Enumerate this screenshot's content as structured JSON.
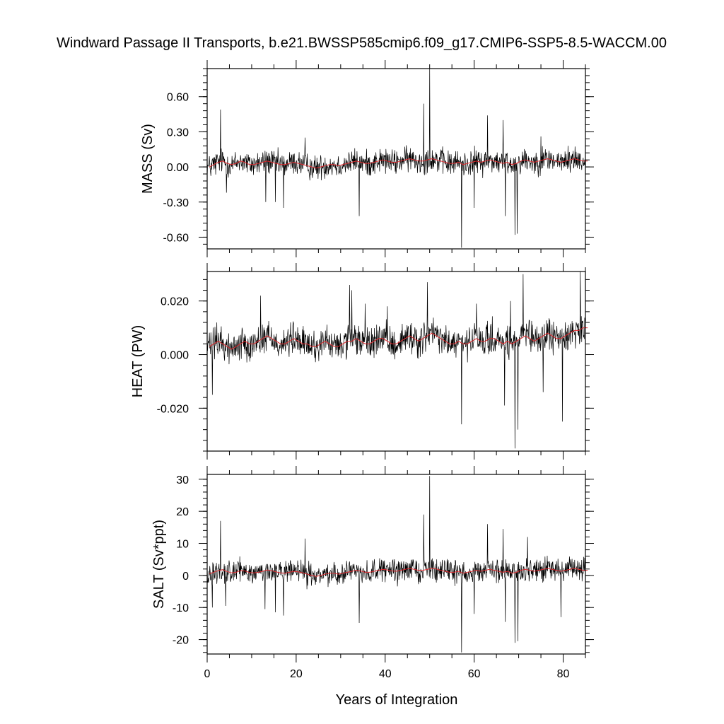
{
  "chart_data": [
    {
      "type": "line",
      "title": "Windward Passage II Transports, b.e21.BWSSP585cmip6.f09_g17.CMIP6-SSP5-8.5-WACCM.00",
      "ylabel": "MASS (Sv)",
      "xlabel": "",
      "xlim": [
        0,
        85
      ],
      "ylim": [
        -0.7,
        0.84
      ],
      "y_ticks": [
        -0.6,
        -0.3,
        0.0,
        0.3,
        0.6
      ],
      "y_tick_labels": [
        "-0.60",
        "-0.30",
        "0.00",
        "0.30",
        "0.60"
      ],
      "grid": false,
      "baseline": [
        0.0,
        0.02,
        0.04,
        0.05,
        0.03,
        0.02,
        0.03,
        0.05,
        0.04,
        0.02,
        0.02,
        0.03,
        0.04,
        0.05,
        0.04,
        0.03,
        0.02,
        0.02,
        0.03,
        0.04,
        0.03,
        0.02,
        0.01,
        0.0,
        -0.01,
        0.0,
        0.01,
        0.02,
        0.02,
        0.01,
        0.02,
        0.03,
        0.04,
        0.05,
        0.04,
        0.03,
        0.03,
        0.04,
        0.05,
        0.06,
        0.05,
        0.04,
        0.04,
        0.05,
        0.06,
        0.07,
        0.06,
        0.05,
        0.05,
        0.06,
        0.07,
        0.06,
        0.05,
        0.04,
        0.03,
        0.03,
        0.04,
        0.02,
        0.03,
        0.04,
        0.05,
        0.04,
        0.05,
        0.06,
        0.05,
        0.04,
        0.03,
        0.04,
        0.02,
        0.03,
        0.05,
        0.06,
        0.05,
        0.04,
        0.05,
        0.06,
        0.07,
        0.06,
        0.05,
        0.04,
        0.05,
        0.06,
        0.07,
        0.06,
        0.05,
        0.05
      ],
      "noise_amplitude": 0.08,
      "spikes": [
        {
          "x": 3.0,
          "y": 0.49
        },
        {
          "x": 4.3,
          "y": -0.22
        },
        {
          "x": 13.2,
          "y": -0.3
        },
        {
          "x": 15.3,
          "y": -0.3
        },
        {
          "x": 17.2,
          "y": -0.35
        },
        {
          "x": 22.0,
          "y": 0.25
        },
        {
          "x": 34.2,
          "y": -0.42
        },
        {
          "x": 48.7,
          "y": 0.54
        },
        {
          "x": 50.0,
          "y": 0.84
        },
        {
          "x": 57.2,
          "y": -0.69
        },
        {
          "x": 60.0,
          "y": -0.35
        },
        {
          "x": 63.0,
          "y": 0.44
        },
        {
          "x": 66.5,
          "y": 0.4
        },
        {
          "x": 67.0,
          "y": -0.42
        },
        {
          "x": 69.2,
          "y": -0.58
        },
        {
          "x": 69.7,
          "y": -0.57
        },
        {
          "x": 75.0,
          "y": 0.26
        }
      ]
    },
    {
      "type": "line",
      "ylabel": "HEAT (PW)",
      "xlabel": "",
      "xlim": [
        0,
        85
      ],
      "ylim": [
        -0.036,
        0.031
      ],
      "y_ticks": [
        -0.02,
        0.0,
        0.02
      ],
      "y_tick_labels": [
        "-0.020",
        "0.000",
        "0.020"
      ],
      "grid": false,
      "baseline": [
        0.003,
        0.004,
        0.005,
        0.004,
        0.003,
        0.002,
        0.003,
        0.004,
        0.005,
        0.004,
        0.004,
        0.005,
        0.006,
        0.007,
        0.006,
        0.005,
        0.004,
        0.004,
        0.005,
        0.006,
        0.005,
        0.004,
        0.004,
        0.003,
        0.003,
        0.004,
        0.005,
        0.004,
        0.003,
        0.003,
        0.004,
        0.005,
        0.005,
        0.006,
        0.005,
        0.004,
        0.004,
        0.005,
        0.006,
        0.006,
        0.005,
        0.004,
        0.004,
        0.005,
        0.006,
        0.007,
        0.006,
        0.005,
        0.006,
        0.007,
        0.008,
        0.007,
        0.006,
        0.005,
        0.004,
        0.004,
        0.005,
        0.004,
        0.004,
        0.005,
        0.006,
        0.005,
        0.005,
        0.006,
        0.006,
        0.005,
        0.004,
        0.005,
        0.004,
        0.005,
        0.006,
        0.007,
        0.006,
        0.005,
        0.006,
        0.007,
        0.008,
        0.007,
        0.006,
        0.006,
        0.007,
        0.008,
        0.009,
        0.009,
        0.01,
        0.01
      ],
      "noise_amplitude": 0.0045,
      "spikes": [
        {
          "x": 1.2,
          "y": -0.015
        },
        {
          "x": 12.0,
          "y": 0.022
        },
        {
          "x": 32.5,
          "y": 0.024
        },
        {
          "x": 32.0,
          "y": 0.026
        },
        {
          "x": 35.5,
          "y": 0.019
        },
        {
          "x": 40.5,
          "y": 0.018
        },
        {
          "x": 49.5,
          "y": 0.027
        },
        {
          "x": 57.2,
          "y": -0.026
        },
        {
          "x": 60.5,
          "y": 0.019
        },
        {
          "x": 66.8,
          "y": -0.019
        },
        {
          "x": 68.2,
          "y": 0.02
        },
        {
          "x": 69.2,
          "y": -0.035
        },
        {
          "x": 69.8,
          "y": -0.028
        },
        {
          "x": 71.0,
          "y": 0.03
        },
        {
          "x": 75.5,
          "y": -0.014
        },
        {
          "x": 79.8,
          "y": -0.025
        },
        {
          "x": 83.8,
          "y": 0.031
        }
      ]
    },
    {
      "type": "line",
      "ylabel": "SALT (Sv*ppt)",
      "xlabel": "Years of Integration",
      "xlim": [
        0,
        85
      ],
      "ylim": [
        -24.5,
        31.5
      ],
      "x_ticks": [
        0,
        20,
        40,
        60,
        80
      ],
      "x_tick_labels": [
        "0",
        "20",
        "40",
        "60",
        "80"
      ],
      "y_ticks": [
        -20,
        -10,
        0,
        10,
        20,
        30
      ],
      "y_tick_labels": [
        "-20",
        "-10",
        "0",
        "10",
        "20",
        "30"
      ],
      "grid": false,
      "baseline": [
        0.5,
        1.0,
        1.5,
        1.8,
        1.2,
        0.8,
        1.0,
        1.5,
        1.4,
        0.9,
        0.8,
        1.0,
        1.3,
        1.7,
        1.5,
        1.1,
        0.8,
        0.7,
        1.0,
        1.3,
        1.1,
        0.8,
        0.4,
        0.0,
        -0.3,
        0.0,
        0.4,
        0.7,
        0.7,
        0.4,
        0.7,
        1.0,
        1.3,
        1.6,
        1.4,
        1.0,
        1.0,
        1.3,
        1.6,
        1.9,
        1.7,
        1.4,
        1.3,
        1.6,
        1.9,
        2.2,
        1.9,
        1.6,
        1.6,
        1.9,
        2.2,
        2.0,
        1.6,
        1.3,
        1.0,
        1.0,
        1.3,
        0.7,
        1.0,
        1.3,
        1.6,
        1.3,
        1.6,
        1.9,
        1.6,
        1.3,
        1.0,
        1.3,
        0.7,
        1.0,
        1.6,
        1.9,
        1.6,
        1.3,
        1.6,
        1.9,
        2.2,
        1.9,
        1.6,
        1.3,
        1.6,
        1.9,
        2.2,
        1.9,
        1.6,
        1.6
      ],
      "noise_amplitude": 2.6,
      "spikes": [
        {
          "x": 1.2,
          "y": -10.0
        },
        {
          "x": 3.0,
          "y": 17.0
        },
        {
          "x": 4.2,
          "y": -9.5
        },
        {
          "x": 13.0,
          "y": -10.5
        },
        {
          "x": 15.3,
          "y": -11.5
        },
        {
          "x": 17.2,
          "y": -12.5
        },
        {
          "x": 22.0,
          "y": 11.5
        },
        {
          "x": 34.2,
          "y": -14.8
        },
        {
          "x": 48.7,
          "y": 19.0
        },
        {
          "x": 50.0,
          "y": 31.0
        },
        {
          "x": 57.2,
          "y": -24.0
        },
        {
          "x": 60.0,
          "y": -12.0
        },
        {
          "x": 63.0,
          "y": 16.0
        },
        {
          "x": 66.5,
          "y": 14.5
        },
        {
          "x": 67.0,
          "y": -14.5
        },
        {
          "x": 69.2,
          "y": -21.0
        },
        {
          "x": 69.8,
          "y": -20.5
        },
        {
          "x": 72.0,
          "y": 12.0
        },
        {
          "x": 79.5,
          "y": -13.0
        }
      ]
    }
  ]
}
